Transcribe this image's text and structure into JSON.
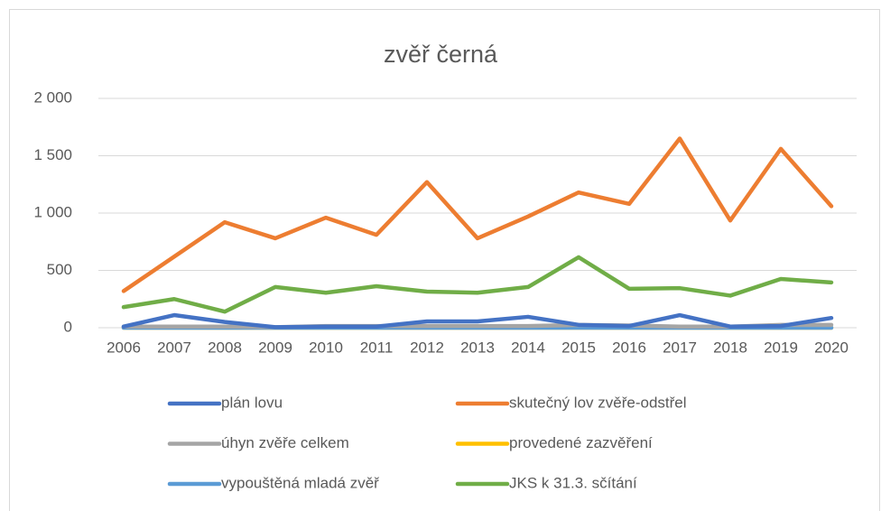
{
  "chart_data": {
    "type": "line",
    "title": "zvěř černá",
    "categories": [
      "2006",
      "2007",
      "2008",
      "2009",
      "2010",
      "2011",
      "2012",
      "2013",
      "2014",
      "2015",
      "2016",
      "2017",
      "2018",
      "2019",
      "2020"
    ],
    "series": [
      {
        "name": "plán lovu",
        "color": "#4472c4",
        "values": [
          10,
          110,
          50,
          5,
          10,
          10,
          55,
          55,
          95,
          25,
          15,
          110,
          10,
          15,
          85
        ]
      },
      {
        "name": "skutečný lov zvěře-odstřel",
        "color": "#ed7d31",
        "values": [
          320,
          620,
          920,
          780,
          960,
          810,
          1270,
          780,
          970,
          1180,
          1080,
          1650,
          935,
          1560,
          1060
        ]
      },
      {
        "name": "úhyn zvěře celkem",
        "color": "#a5a5a5",
        "values": [
          10,
          10,
          10,
          5,
          15,
          15,
          15,
          15,
          15,
          25,
          20,
          10,
          10,
          25,
          25
        ]
      },
      {
        "name": "provedené zazvěření",
        "color": "#ffc000",
        "values": [
          0,
          0,
          0,
          0,
          0,
          0,
          0,
          0,
          0,
          0,
          0,
          0,
          0,
          0,
          0
        ]
      },
      {
        "name": "vypouštěná mladá zvěř",
        "color": "#5b9bd5",
        "values": [
          0,
          0,
          0,
          0,
          0,
          0,
          0,
          0,
          0,
          0,
          0,
          0,
          0,
          0,
          0
        ]
      },
      {
        "name": "JKS k 31.3. sčítání",
        "color": "#70ad47",
        "values": [
          180,
          250,
          140,
          355,
          305,
          362,
          315,
          305,
          355,
          615,
          340,
          345,
          280,
          425,
          395
        ]
      }
    ],
    "ylim": [
      0,
      2000
    ],
    "yticks": [
      0,
      500,
      {
        "value": 1000,
        "label": "1 000"
      },
      {
        "value": 1500,
        "label": "1 500"
      },
      {
        "value": 2000,
        "label": "2 000"
      }
    ],
    "grid": true,
    "legend": "bottom"
  }
}
